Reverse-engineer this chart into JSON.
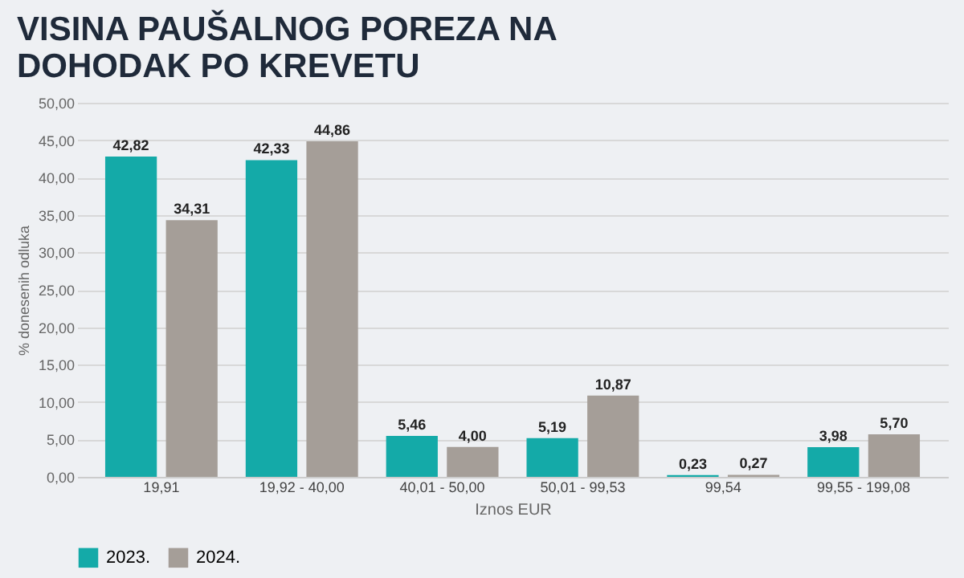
{
  "chart_data": {
    "type": "bar",
    "title": "VISINA PAUŠALNOG POREZA NA DOHODAK PO KREVETU",
    "xlabel": "Iznos EUR",
    "ylabel": "% donesenih odluka",
    "categories": [
      "19,91",
      "19,92 - 40,00",
      "40,01 - 50,00",
      "50,01 - 99,53",
      "99,54",
      "99,55 - 199,08"
    ],
    "series": [
      {
        "name": "2023.",
        "color": "#14aaa8",
        "values": [
          42.82,
          42.33,
          5.46,
          5.19,
          0.23,
          3.98
        ],
        "value_labels": [
          "42,82",
          "42,33",
          "5,46",
          "5,19",
          "0,23",
          "3,98"
        ]
      },
      {
        "name": "2024.",
        "color": "#a59e98",
        "values": [
          34.31,
          44.86,
          4.0,
          10.87,
          0.27,
          5.7
        ],
        "value_labels": [
          "34,31",
          "44,86",
          "4,00",
          "10,87",
          "0,27",
          "5,70"
        ]
      }
    ],
    "ylim": [
      0,
      50
    ],
    "yticks": [
      {
        "value": 0,
        "label": "0,00"
      },
      {
        "value": 5,
        "label": "5,00"
      },
      {
        "value": 10,
        "label": "10,00"
      },
      {
        "value": 15,
        "label": "15,00"
      },
      {
        "value": 20,
        "label": "20,00"
      },
      {
        "value": 25,
        "label": "25,00"
      },
      {
        "value": 30,
        "label": "30,00"
      },
      {
        "value": 35,
        "label": "35,00"
      },
      {
        "value": 40,
        "label": "40,00"
      },
      {
        "value": 45,
        "label": "45,00"
      },
      {
        "value": 50,
        "label": "50,00"
      }
    ],
    "grid": "y",
    "legend": "bottom"
  }
}
